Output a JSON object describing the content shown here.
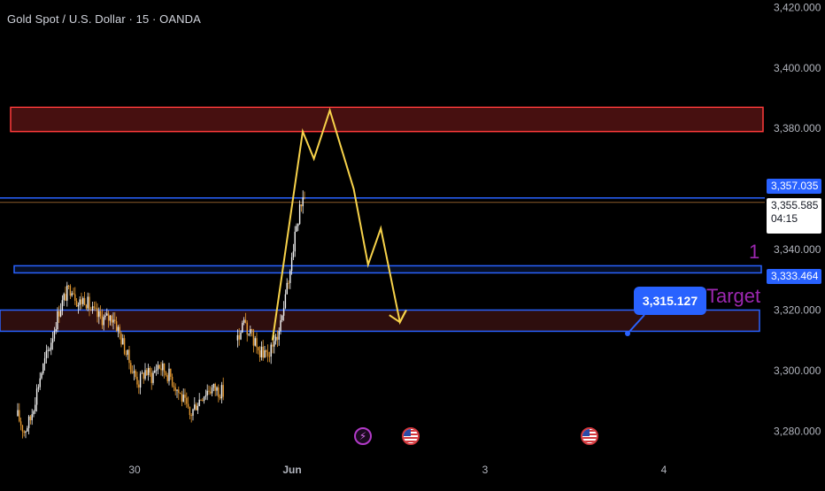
{
  "header": {
    "title": "Gold Spot / U.S. Dollar · 15 · OANDA"
  },
  "colors": {
    "background": "#000000",
    "up_candle": "#f5f5f5",
    "down_candle": "#e69a30",
    "resistance_zone": "#ff3b3b",
    "support_line": "#2962ff",
    "projection": "#f7d24a",
    "annotation": "#9c27b0"
  },
  "chart_data": {
    "type": "candlestick",
    "ylim": [
      3276,
      3421
    ],
    "y_ticks": [
      "3,280.000",
      "3,300.000",
      "3,320.000",
      "3,340.000",
      "3,360.000",
      "3,380.000",
      "3,400.000",
      "3,420.000"
    ],
    "x_ticks": [
      "30",
      "Jun",
      "3",
      "4"
    ],
    "grid": false,
    "legend": "none",
    "price_trend": [
      [
        0,
        3285
      ],
      [
        4,
        3280
      ],
      [
        8,
        3284
      ],
      [
        14,
        3298
      ],
      [
        20,
        3308
      ],
      [
        26,
        3320
      ],
      [
        30,
        3325
      ],
      [
        34,
        3328
      ],
      [
        38,
        3322
      ],
      [
        42,
        3324
      ],
      [
        46,
        3320
      ],
      [
        50,
        3318
      ],
      [
        55,
        3317
      ],
      [
        60,
        3318
      ],
      [
        64,
        3312
      ],
      [
        68,
        3306
      ],
      [
        72,
        3300
      ],
      [
        76,
        3296
      ],
      [
        80,
        3300
      ],
      [
        84,
        3298
      ],
      [
        88,
        3302
      ],
      [
        92,
        3300
      ],
      [
        96,
        3298
      ],
      [
        100,
        3294
      ],
      [
        104,
        3290
      ],
      [
        108,
        3285
      ],
      [
        112,
        3289
      ],
      [
        116,
        3292
      ],
      [
        120,
        3294
      ],
      [
        124,
        3294
      ],
      [
        128,
        3293
      ],
      [
        130,
        3292
      ]
    ],
    "price_trend_2": [
      [
        138,
        3310
      ],
      [
        142,
        3315
      ],
      [
        146,
        3312
      ],
      [
        150,
        3308
      ],
      [
        154,
        3305
      ],
      [
        158,
        3306
      ],
      [
        162,
        3310
      ],
      [
        166,
        3318
      ],
      [
        170,
        3330
      ],
      [
        174,
        3345
      ],
      [
        178,
        3355
      ],
      [
        181,
        3358
      ]
    ],
    "zones": [
      {
        "name": "resistance",
        "from": 3379,
        "to": 3387
      },
      {
        "name": "support",
        "from": 3313,
        "to": 3320
      }
    ],
    "levels": [
      {
        "name": "upper-line",
        "value": 3357.035
      },
      {
        "name": "current-line",
        "value": 3355.585
      },
      {
        "name": "level-1",
        "value": 3333.464
      }
    ],
    "projection_path": [
      [
        161,
        3310
      ],
      [
        180,
        3379
      ],
      [
        187,
        3370
      ],
      [
        197,
        3386
      ],
      [
        212,
        3360
      ],
      [
        221,
        3335
      ],
      [
        229,
        3347
      ],
      [
        241,
        3316
      ],
      [
        245,
        3320
      ]
    ],
    "price_tags": [
      {
        "value": "3,357.035",
        "style": "blue"
      },
      {
        "value": "3,355.585",
        "style": "white",
        "sub": "04:15"
      },
      {
        "value": "3,333.464",
        "style": "blue"
      }
    ],
    "annotations": {
      "target_price": "3,315.127",
      "target_label": "Target",
      "level_label": "1"
    }
  }
}
